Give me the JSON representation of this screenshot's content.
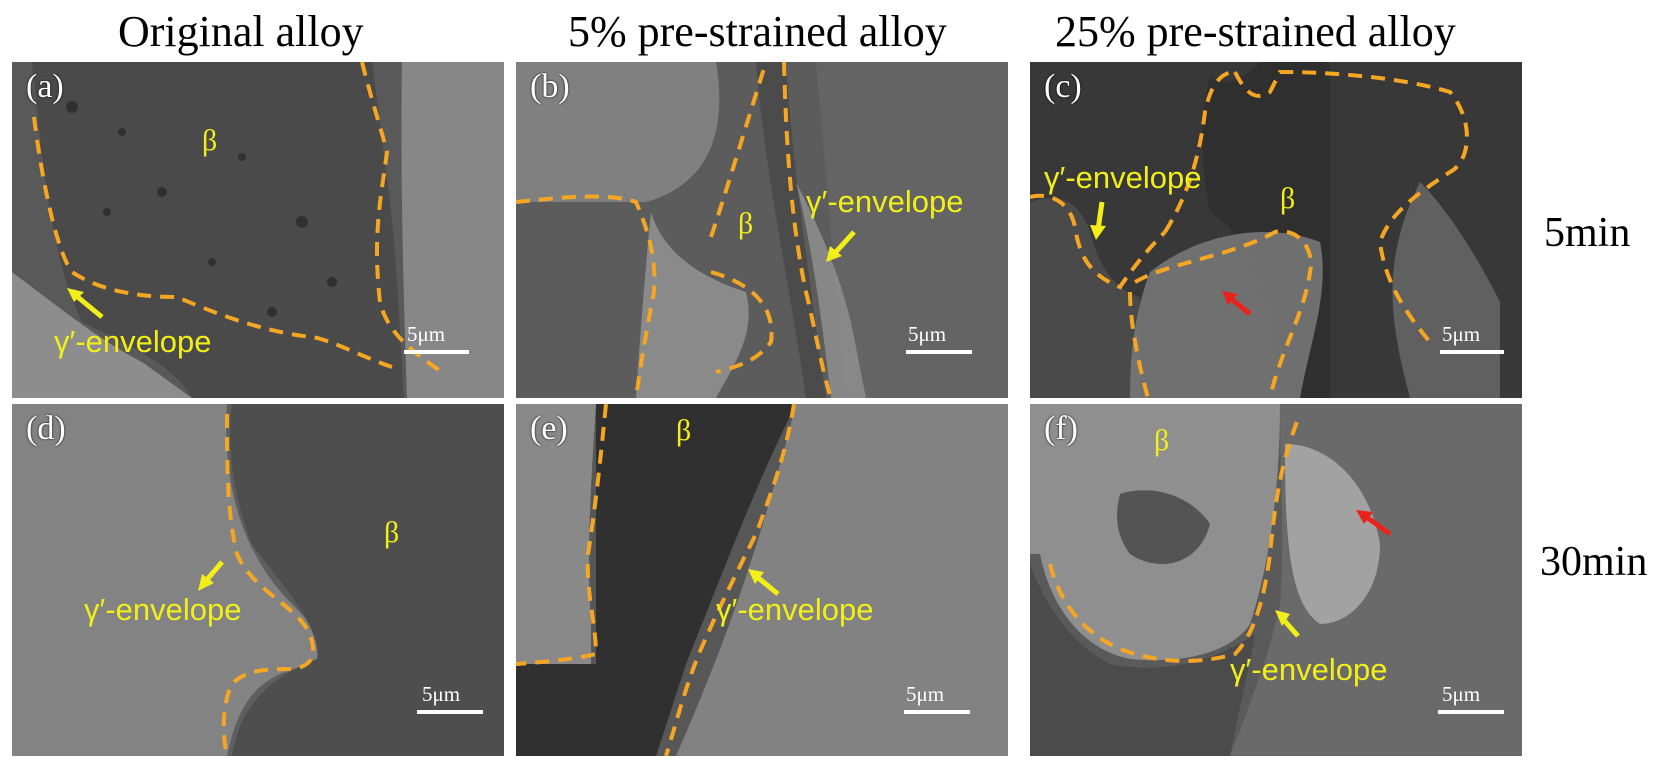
{
  "columns": [
    "Original alloy",
    "5% pre-strained alloy",
    "25% pre-strained alloy"
  ],
  "rows": [
    "5min",
    "30min"
  ],
  "panels": {
    "a": {
      "label": "(a)",
      "beta": "β",
      "envelope": "γ′-envelope",
      "scale": "5μm"
    },
    "b": {
      "label": "(b)",
      "beta": "β",
      "envelope": "γ′-envelope",
      "scale": "5μm"
    },
    "c": {
      "label": "(c)",
      "beta": "β",
      "envelope": "γ′-envelope",
      "scale": "5μm"
    },
    "d": {
      "label": "(d)",
      "beta": "β",
      "envelope": "γ′-envelope",
      "scale": "5μm"
    },
    "e": {
      "label": "(e)",
      "beta": "β",
      "envelope": "γ′-envelope",
      "scale": "5μm"
    },
    "f": {
      "label": "(f)",
      "beta": "β",
      "envelope": "γ′-envelope",
      "scale": "5μm"
    }
  },
  "colors": {
    "boundary": "#f5a623",
    "annotation": "#f2ee1a",
    "arrow_yellow": "#f2ee1a",
    "arrow_red": "#e8231c"
  }
}
